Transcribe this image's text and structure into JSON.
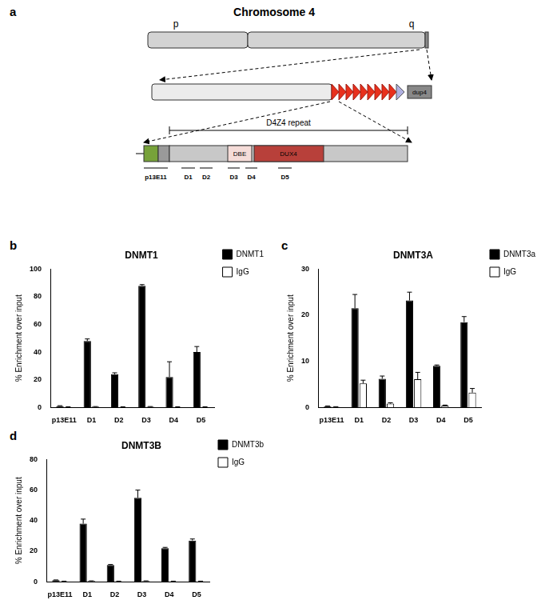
{
  "diagram": {
    "panel": "a",
    "title": "Chromosome 4",
    "arm_labels": [
      "p",
      "q"
    ],
    "repeat_label": "D4Z4 repeat",
    "elements": [
      "DBE",
      "DUX4",
      "dup4"
    ],
    "regions": [
      "p13E11",
      "D1",
      "D2",
      "D3",
      "D4",
      "D5"
    ]
  },
  "chart_data": [
    {
      "panel": "b",
      "type": "bar",
      "title": "DNMT1",
      "y_label": "% Enrichment over input",
      "categories": [
        "p13E11",
        "D1",
        "D2",
        "D3",
        "D4",
        "D5"
      ],
      "series": [
        {
          "name": "DNMT1",
          "color": "#000000",
          "values": [
            1,
            48,
            24,
            88,
            22,
            40
          ],
          "errors": [
            0.2,
            1.5,
            1,
            0.8,
            11,
            4
          ]
        },
        {
          "name": "IgG",
          "color": "#ffffff",
          "values": [
            0.3,
            0.5,
            0.3,
            0.5,
            0.3,
            0.3
          ],
          "errors": [
            0.1,
            0.1,
            0.1,
            0.1,
            0.1,
            0.1
          ]
        }
      ],
      "ylim": [
        0,
        100
      ],
      "yticks": [
        0,
        20,
        40,
        60,
        80,
        100
      ],
      "grid": false,
      "legend": "right"
    },
    {
      "panel": "c",
      "type": "bar",
      "title": "DNMT3A",
      "y_label": "% Enrichment over input",
      "categories": [
        "p13E11",
        "D1",
        "D2",
        "D3",
        "D4",
        "D5"
      ],
      "series": [
        {
          "name": "DNMT3a",
          "color": "#000000",
          "values": [
            0.2,
            21.5,
            6.2,
            23.2,
            9,
            18.5
          ],
          "errors": [
            0.1,
            3,
            0.6,
            1.8,
            0.2,
            1.2
          ]
        },
        {
          "name": "IgG",
          "color": "#ffffff",
          "values": [
            0.1,
            5.2,
            0.8,
            6.1,
            0.4,
            3.2
          ],
          "errors": [
            0.05,
            0.7,
            0.2,
            1.5,
            0.1,
            0.9
          ]
        }
      ],
      "ylim": [
        0,
        30
      ],
      "yticks": [
        0,
        10,
        20,
        30
      ],
      "grid": false,
      "legend": "right"
    },
    {
      "panel": "d",
      "type": "bar",
      "title": "DNMT3B",
      "y_label": "% Enrichment over input",
      "categories": [
        "p13E11",
        "D1",
        "D2",
        "D3",
        "D4",
        "D5"
      ],
      "series": [
        {
          "name": "DNMT3b",
          "color": "#000000",
          "values": [
            1,
            38,
            11,
            55,
            22,
            27
          ],
          "errors": [
            0.2,
            3,
            0.3,
            5,
            0.5,
            1
          ]
        },
        {
          "name": "IgG",
          "color": "#ffffff",
          "values": [
            0.3,
            0.5,
            0.3,
            0.5,
            0.3,
            0.3
          ],
          "errors": [
            0.1,
            0.1,
            0.1,
            0.1,
            0.1,
            0.1
          ]
        }
      ],
      "ylim": [
        0,
        80
      ],
      "yticks": [
        0,
        20,
        40,
        60,
        80
      ],
      "grid": false,
      "legend": "right"
    }
  ]
}
